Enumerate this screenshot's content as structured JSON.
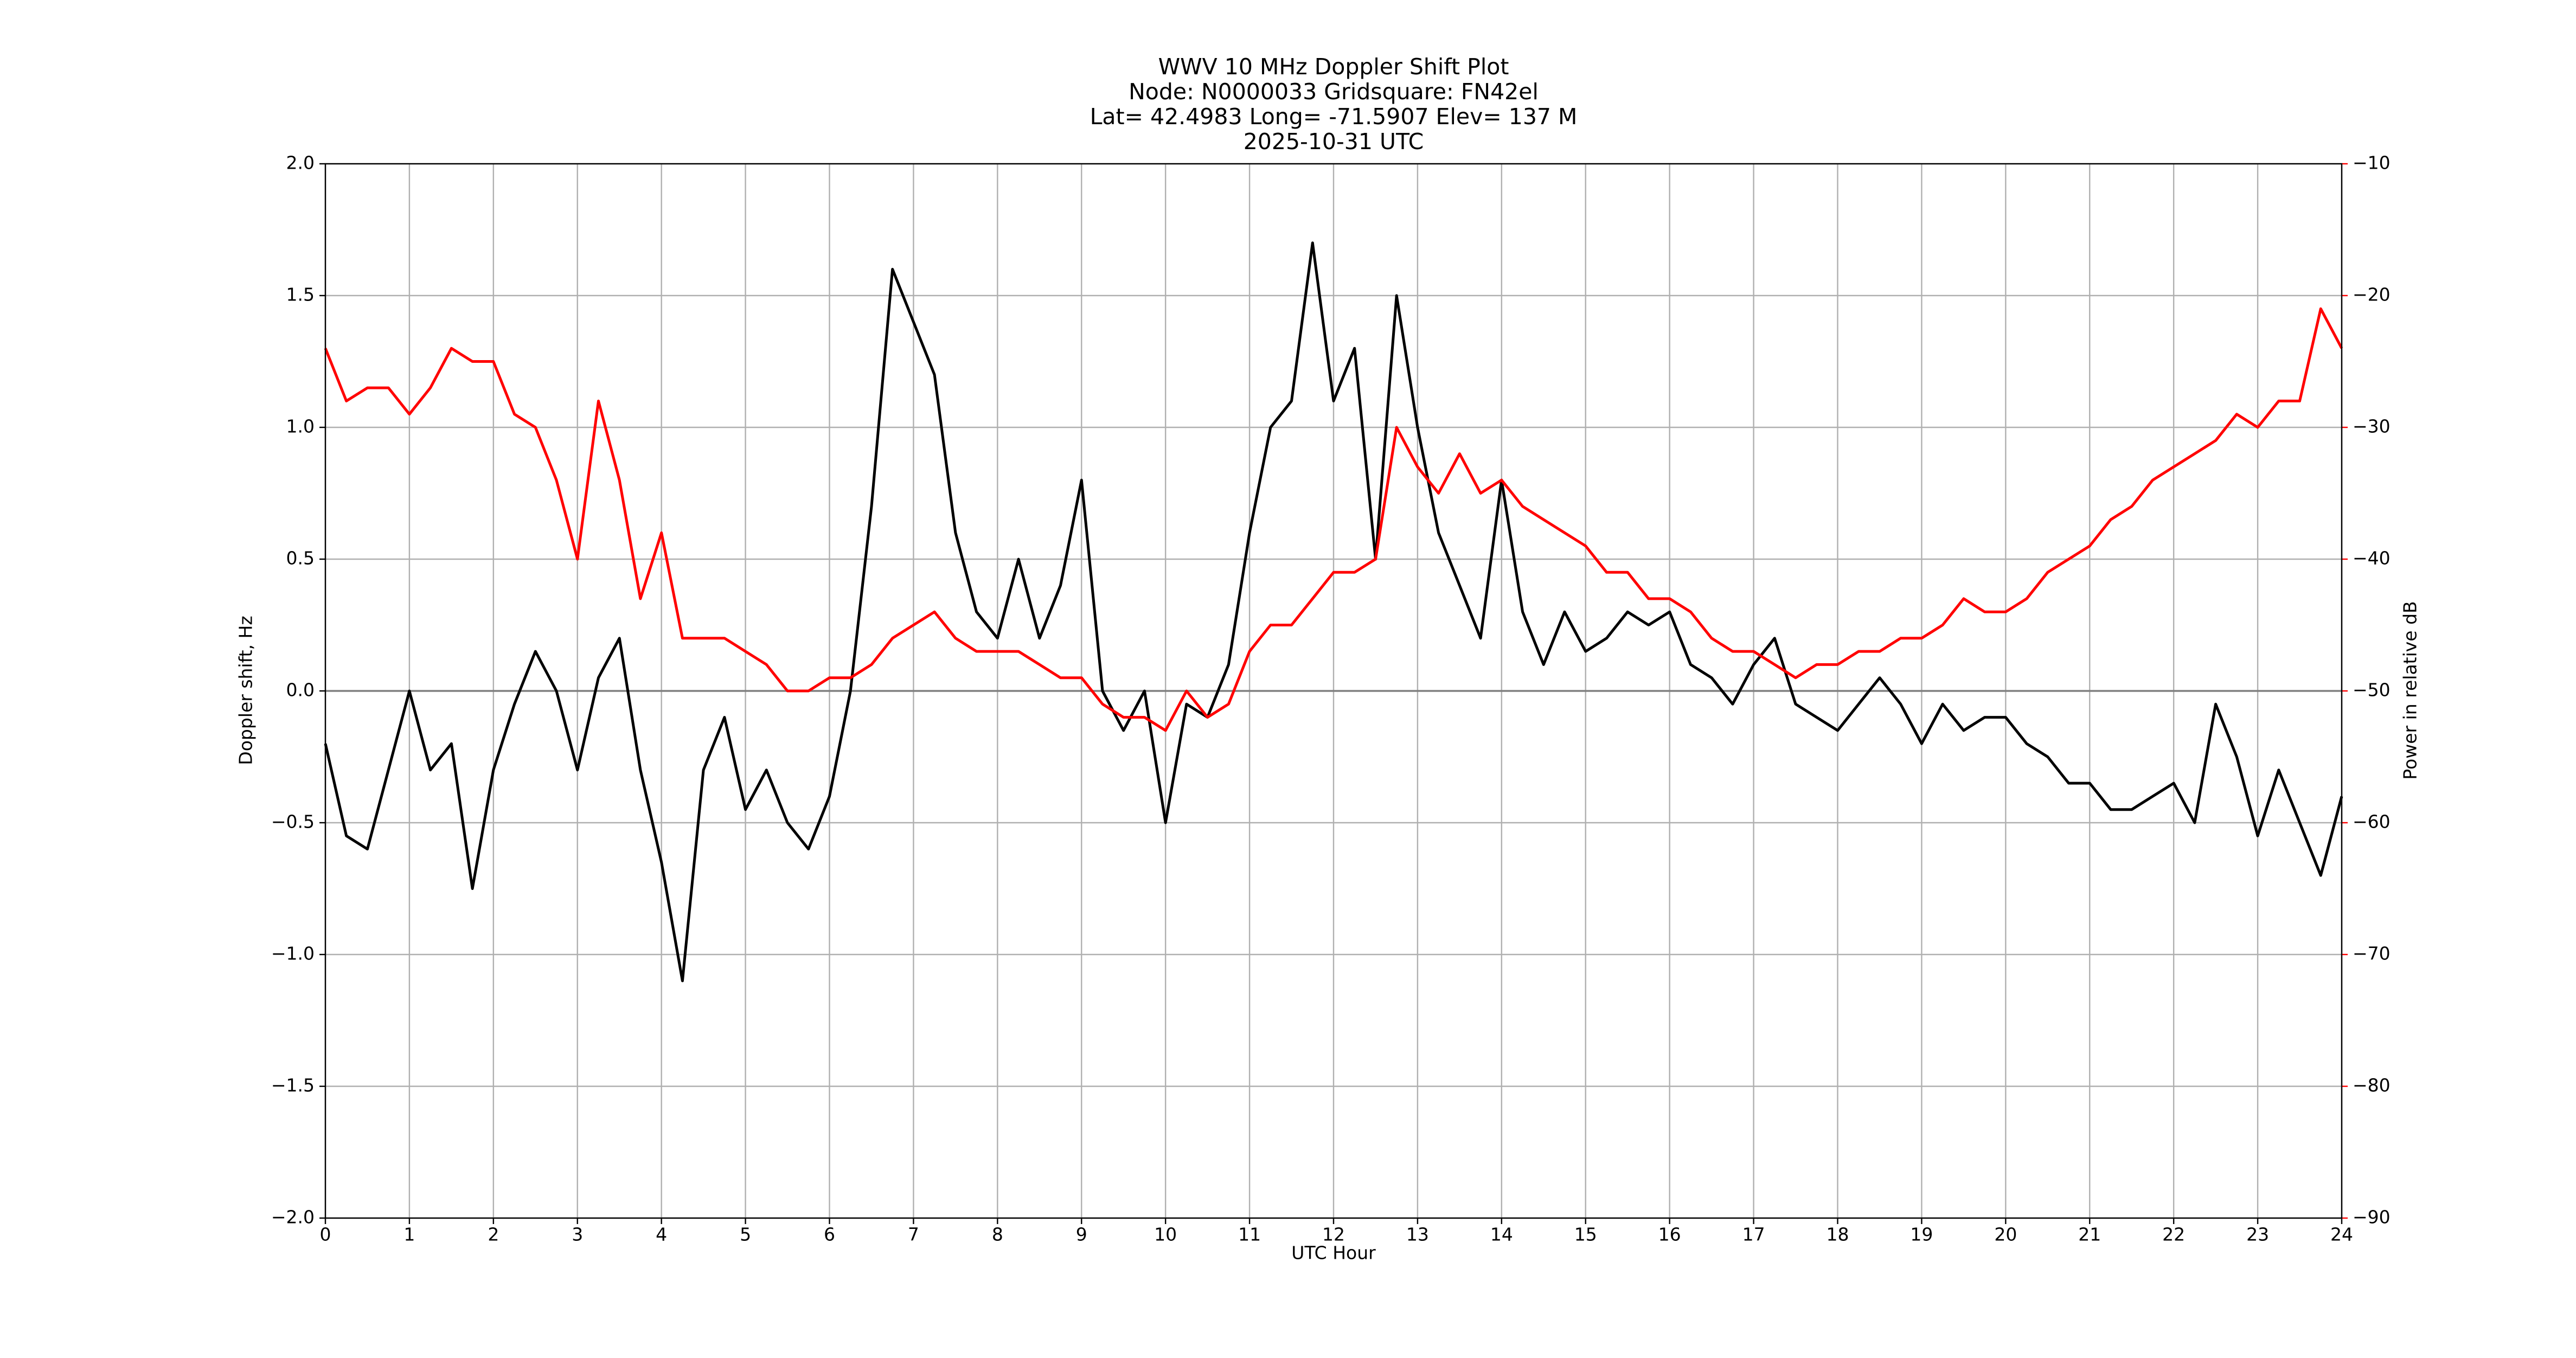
{
  "chart_data": {
    "type": "line",
    "title_lines": [
      "WWV 10 MHz Doppler Shift Plot",
      "Node:  N0000033     Gridsquare:  FN42el",
      "Lat= 42.4983    Long= -71.5907    Elev= 137 M",
      "2025-10-31  UTC"
    ],
    "xlabel": "UTC Hour",
    "ylabel": "Doppler shift, Hz",
    "y2label": "Power in relative dB",
    "grid": true,
    "zero_line": true,
    "xlim": [
      0,
      24
    ],
    "xticks": [
      0,
      1,
      2,
      3,
      4,
      5,
      6,
      7,
      8,
      9,
      10,
      11,
      12,
      13,
      14,
      15,
      16,
      17,
      18,
      19,
      20,
      21,
      22,
      23,
      24
    ],
    "ylim": [
      -2,
      2
    ],
    "yticks": [
      {
        "value": -2,
        "label": "−2.0"
      },
      {
        "value": -1.5,
        "label": "−1.5"
      },
      {
        "value": -1,
        "label": "−1.0"
      },
      {
        "value": -0.5,
        "label": "−0.5"
      },
      {
        "value": 0,
        "label": "0.0"
      },
      0.5,
      {
        "value": 1,
        "label": "1.0"
      },
      1.5,
      {
        "value": 2,
        "label": "2.0"
      }
    ],
    "y2lim": [
      -90,
      -10
    ],
    "y2ticks": [
      {
        "value": -90,
        "label": "−90"
      },
      {
        "value": -80,
        "label": "−80"
      },
      {
        "value": -70,
        "label": "−70"
      },
      {
        "value": -60,
        "label": "−60"
      },
      {
        "value": -50,
        "label": "−50"
      },
      {
        "value": -40,
        "label": "−40"
      },
      {
        "value": -30,
        "label": "−30"
      },
      {
        "value": -20,
        "label": "−20"
      },
      {
        "value": -10,
        "label": "−10"
      }
    ],
    "y2color": "#ff0000",
    "x": [
      0,
      0.25,
      0.5,
      0.75,
      1,
      1.25,
      1.5,
      1.75,
      2,
      2.25,
      2.5,
      2.75,
      3,
      3.25,
      3.5,
      3.75,
      4,
      4.25,
      4.5,
      4.75,
      5,
      5.25,
      5.5,
      5.75,
      6,
      6.25,
      6.5,
      6.75,
      7,
      7.25,
      7.5,
      7.75,
      8,
      8.25,
      8.5,
      8.75,
      9,
      9.25,
      9.5,
      9.75,
      10,
      10.25,
      10.5,
      10.75,
      11,
      11.25,
      11.5,
      11.75,
      12,
      12.25,
      12.5,
      12.75,
      13,
      13.25,
      13.5,
      13.75,
      14,
      14.25,
      14.5,
      14.75,
      15,
      15.25,
      15.5,
      15.75,
      16,
      16.25,
      16.5,
      16.75,
      17,
      17.25,
      17.5,
      17.75,
      18,
      18.25,
      18.5,
      18.75,
      19,
      19.25,
      19.5,
      19.75,
      20,
      20.25,
      20.5,
      20.75,
      21,
      21.25,
      21.5,
      21.75,
      22,
      22.25,
      22.5,
      22.75,
      23,
      23.25,
      23.5,
      23.75,
      24
    ],
    "series": [
      {
        "color": "#000000",
        "axis": "y",
        "values": [
          -0.2,
          -0.55,
          -0.6,
          -0.3,
          0.0,
          -0.3,
          -0.2,
          -0.75,
          -0.3,
          -0.05,
          0.15,
          0.0,
          -0.3,
          0.05,
          0.2,
          -0.3,
          -0.65,
          -1.1,
          -0.3,
          -0.1,
          -0.45,
          -0.3,
          -0.5,
          -0.6,
          -0.4,
          0.0,
          0.7,
          1.6,
          1.4,
          1.2,
          0.6,
          0.3,
          0.2,
          0.5,
          0.2,
          0.4,
          0.8,
          0.0,
          -0.15,
          0.0,
          -0.5,
          -0.05,
          -0.1,
          0.1,
          0.6,
          1.0,
          1.1,
          1.7,
          1.1,
          1.3,
          0.5,
          1.5,
          1.0,
          0.6,
          0.4,
          0.2,
          0.8,
          0.3,
          0.1,
          0.3,
          0.15,
          0.2,
          0.3,
          0.25,
          0.3,
          0.1,
          0.05,
          -0.05,
          0.1,
          0.2,
          -0.05,
          -0.1,
          -0.15,
          -0.05,
          0.05,
          -0.05,
          -0.2,
          -0.05,
          -0.15,
          -0.1,
          -0.1,
          -0.2,
          -0.25,
          -0.35,
          -0.35,
          -0.45,
          -0.45,
          -0.4,
          -0.35,
          -0.5,
          -0.05,
          -0.25,
          -0.55,
          -0.3,
          -0.5,
          -0.7,
          -0.4
        ]
      },
      {
        "color": "#ff0000",
        "axis": "y2",
        "values": [
          -24,
          -28,
          -27,
          -27,
          -29,
          -27,
          -24,
          -25,
          -25,
          -29,
          -30,
          -34,
          -40,
          -28,
          -34,
          -43,
          -38,
          -46,
          -46,
          -46,
          -47,
          -48,
          -50,
          -50,
          -49,
          -49,
          -48,
          -46,
          -45,
          -44,
          -46,
          -47,
          -47,
          -47,
          -48,
          -49,
          -49,
          -51,
          -52,
          -52,
          -53,
          -50,
          -52,
          -51,
          -47,
          -45,
          -45,
          -43,
          -41,
          -41,
          -40,
          -30,
          -33,
          -35,
          -32,
          -35,
          -34,
          -36,
          -37,
          -38,
          -39,
          -41,
          -41,
          -43,
          -43,
          -44,
          -46,
          -47,
          -47,
          -48,
          -49,
          -48,
          -48,
          -47,
          -47,
          -46,
          -46,
          -45,
          -43,
          -44,
          -44,
          -43,
          -41,
          -40,
          -39,
          -37,
          -36,
          -34,
          -33,
          -32,
          -31,
          -29,
          -30,
          -28,
          -28,
          -21,
          -24
        ]
      }
    ]
  }
}
